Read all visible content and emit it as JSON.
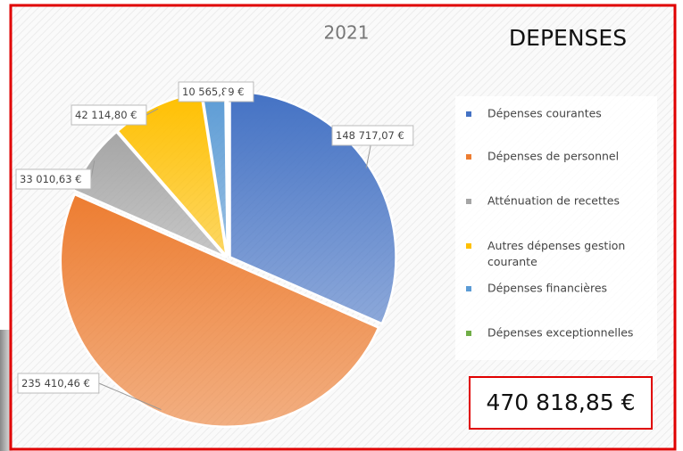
{
  "chart_data": {
    "type": "pie",
    "title": "2021",
    "heading": "DEPENSES",
    "total": "470 818,85 €",
    "categories": [
      "Dépenses courantes",
      "Dépenses de personnel",
      "Atténuation de recettes",
      "Autres dépenses gestion courante",
      "Dépenses financières",
      "Dépenses exceptionnelles"
    ],
    "values": [
      148717.07,
      235410.46,
      33010.63,
      42114.8,
      10565.89,
      1000
    ],
    "value_labels": [
      "148 717,07 €",
      "235 410,46 €",
      "33 010,63 €",
      "42 114,80 €",
      "10 565,89 €",
      null
    ],
    "colors": [
      "#4472c4",
      "#ed7d31",
      "#a5a5a5",
      "#ffc000",
      "#5b9bd5",
      "#70ad47"
    ],
    "legend": "right"
  }
}
